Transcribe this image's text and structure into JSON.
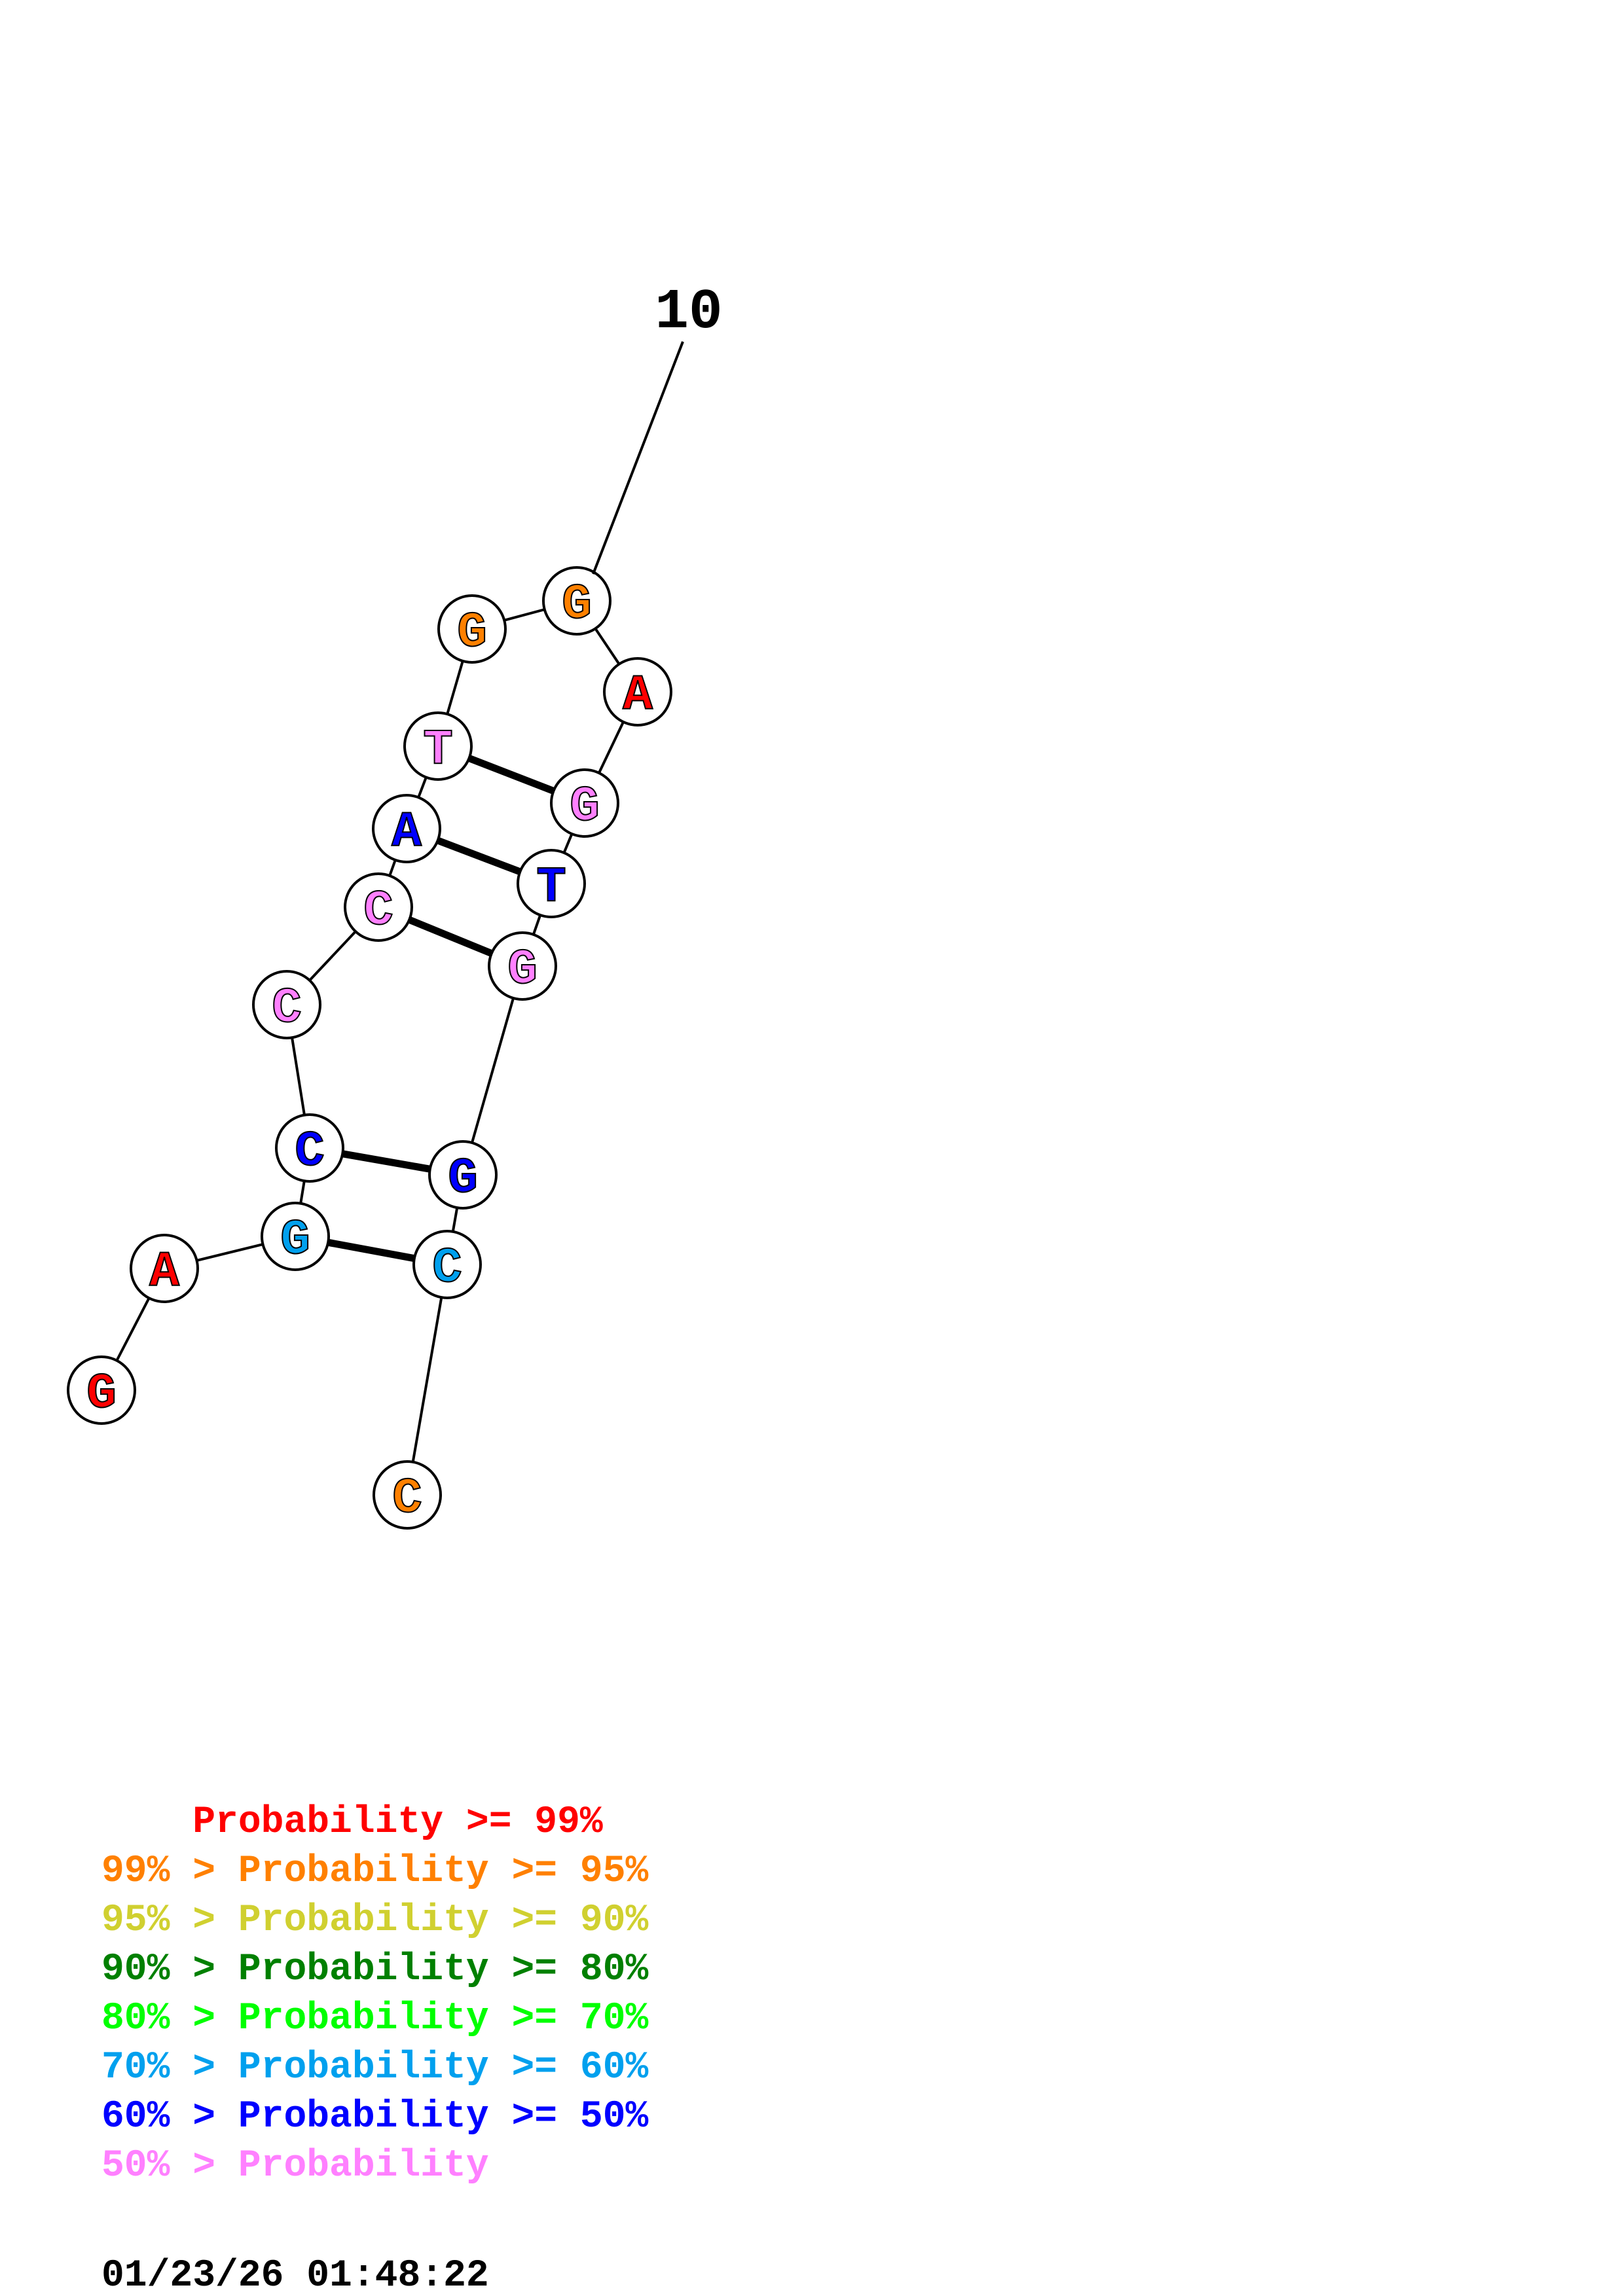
{
  "structure": {
    "number_label": "10",
    "bases": [
      {
        "letter": "G",
        "color": "#ff0000"
      },
      {
        "letter": "A",
        "color": "#ff0000"
      },
      {
        "letter": "G",
        "color": "#00a0ee"
      },
      {
        "letter": "C",
        "color": "#0000ff"
      },
      {
        "letter": "C",
        "color": "#ff80ff"
      },
      {
        "letter": "C",
        "color": "#ff80ff"
      },
      {
        "letter": "A",
        "color": "#0000ff"
      },
      {
        "letter": "T",
        "color": "#ff80ff"
      },
      {
        "letter": "G",
        "color": "#ff8000"
      },
      {
        "letter": "G",
        "color": "#ff8000"
      },
      {
        "letter": "A",
        "color": "#ff0000"
      },
      {
        "letter": "G",
        "color": "#ff80ff"
      },
      {
        "letter": "T",
        "color": "#0000ff"
      },
      {
        "letter": "G",
        "color": "#ff80ff"
      },
      {
        "letter": "G",
        "color": "#0000ff"
      },
      {
        "letter": "C",
        "color": "#00a0ee"
      },
      {
        "letter": "C",
        "color": "#ff8000"
      }
    ],
    "pairs": [
      [
        3,
        16
      ],
      [
        4,
        15
      ],
      [
        6,
        14
      ],
      [
        7,
        13
      ],
      [
        8,
        12
      ]
    ]
  },
  "legend": {
    "rows": [
      {
        "text": "    Probability >= 99%",
        "color": "#ff0000"
      },
      {
        "text": "99% > Probability >= 95%",
        "color": "#ff8000"
      },
      {
        "text": "95% > Probability >= 90%",
        "color": "#d0d030"
      },
      {
        "text": "90% > Probability >= 80%",
        "color": "#008000"
      },
      {
        "text": "80% > Probability >= 70%",
        "color": "#00ff00"
      },
      {
        "text": "70% > Probability >= 60%",
        "color": "#00a0ee"
      },
      {
        "text": "60% > Probability >= 50%",
        "color": "#0000ff"
      },
      {
        "text": "50% > Probability",
        "color": "#ff80ff"
      }
    ],
    "timestamp": "01/23/26 01:48:22"
  }
}
